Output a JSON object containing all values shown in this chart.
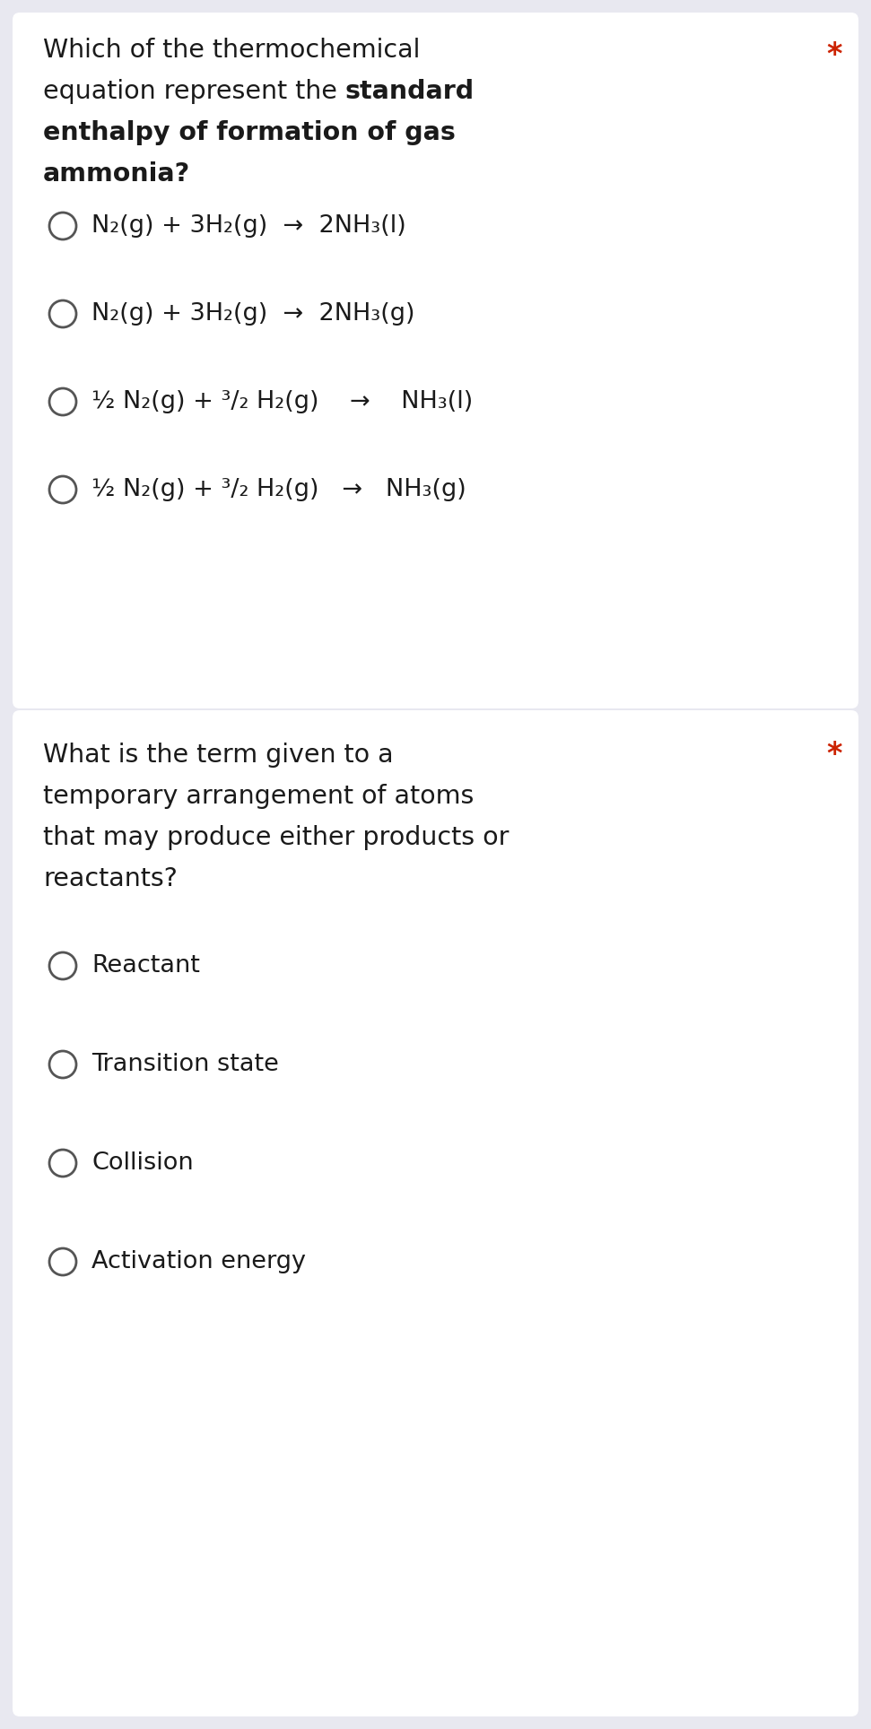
{
  "bg_color": "#e8e8f0",
  "card1_bg": "#ffffff",
  "card2_bg": "#ffffff",
  "text_color": "#1a1a1a",
  "star_color": "#cc2200",
  "circle_color": "#555555",
  "options1_texts": [
    [
      "N₂(g) + 3H₂(g)  →  2NH₃(l)"
    ],
    [
      "N₂(g) + 3H₂(g)  →  2NH₃(g)"
    ],
    [
      "½ N₂(g) + ³/₂ H₂(g)    →    NH₃(l)"
    ],
    [
      "½ N₂(g) + ³/₂ H₂(g)   →   NH₃(g)"
    ]
  ],
  "options2_texts": [
    "Reactant",
    "Transition state",
    "Collision",
    "Activation energy"
  ],
  "q1_line1": "Which of the thermochemical",
  "q1_line2_normal": "equation represent the ",
  "q1_line2_bold": "standard",
  "q1_line3": "enthalpy of formation of gas",
  "q1_line4": "ammonia?",
  "q2_line1": "What is the term given to a",
  "q2_line2": "temporary arrangement of atoms",
  "q2_line3": "that may produce either products or",
  "q2_line4": "reactants?"
}
